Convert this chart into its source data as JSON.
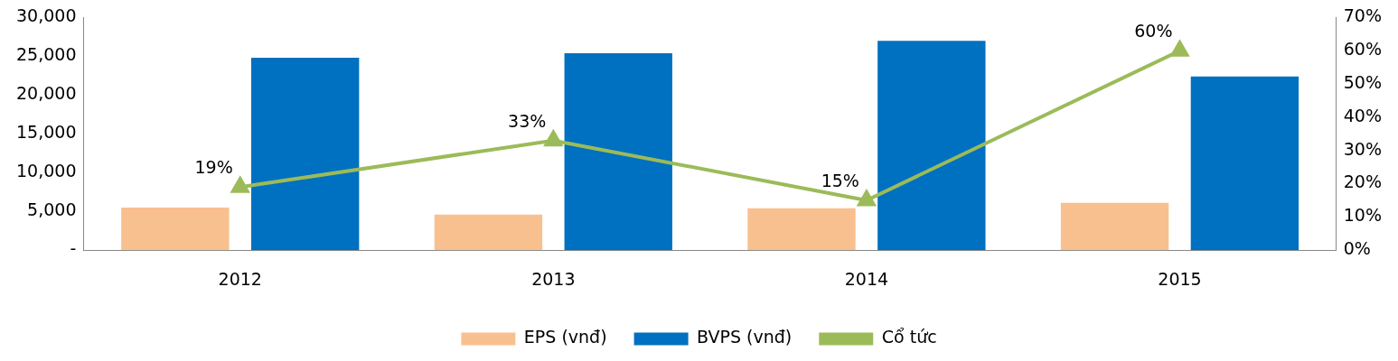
{
  "chart_data": {
    "type": "bar",
    "categories": [
      "2012",
      "2013",
      "2014",
      "2015"
    ],
    "series": [
      {
        "name": "EPS (vnđ)",
        "color": "#f9c08f",
        "values": [
          5500,
          4600,
          5400,
          6100
        ]
      },
      {
        "name": "BVPS (vnđ)",
        "color": "#0070c0",
        "values": [
          24800,
          25400,
          27000,
          22400
        ]
      },
      {
        "name": "Cổ tức",
        "type": "line",
        "axis": "y2",
        "color": "#9bbb59",
        "marker": "triangle",
        "values": [
          19,
          33,
          15,
          60
        ],
        "value_labels": [
          "19%",
          "33%",
          "15%",
          "60%"
        ]
      }
    ],
    "ylim": [
      0,
      30000
    ],
    "yticks": [
      {
        "value": 0,
        "label": "-"
      },
      {
        "value": 5000,
        "label": "5,000"
      },
      {
        "value": 10000,
        "label": "10,000"
      },
      {
        "value": 15000,
        "label": "15,000"
      },
      {
        "value": 20000,
        "label": "20,000"
      },
      {
        "value": 25000,
        "label": "25,000"
      },
      {
        "value": 30000,
        "label": "30,000"
      }
    ],
    "y2lim": [
      0,
      70
    ],
    "y2ticks": [
      {
        "value": 0,
        "label": "0%"
      },
      {
        "value": 10,
        "label": "10%"
      },
      {
        "value": 20,
        "label": "20%"
      },
      {
        "value": 30,
        "label": "30%"
      },
      {
        "value": 40,
        "label": "40%"
      },
      {
        "value": 50,
        "label": "50%"
      },
      {
        "value": 60,
        "label": "60%"
      },
      {
        "value": 70,
        "label": "70%"
      }
    ],
    "grid": false,
    "legend": "bottom"
  }
}
